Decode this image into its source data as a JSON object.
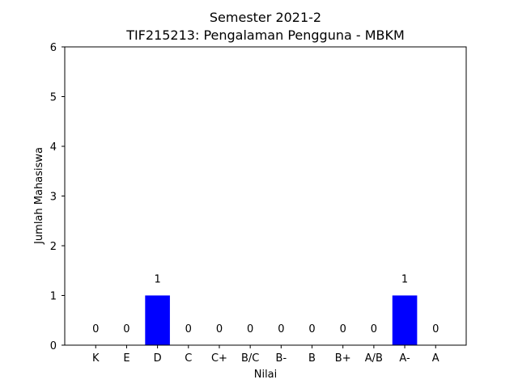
{
  "chart_data": {
    "type": "bar",
    "title": "Semester 2021-2",
    "subtitle": "TIF215213: Pengalaman Pengguna - MBKM",
    "xlabel": "Nilai",
    "ylabel": "Jumlah Mahasiswa",
    "categories": [
      "K",
      "E",
      "D",
      "C",
      "C+",
      "B/C",
      "B-",
      "B",
      "B+",
      "A/B",
      "A-",
      "A"
    ],
    "values": [
      0,
      0,
      1,
      0,
      0,
      0,
      0,
      0,
      0,
      0,
      1,
      0
    ],
    "data_labels": [
      "0",
      "0",
      "1",
      "0",
      "0",
      "0",
      "0",
      "0",
      "0",
      "0",
      "1",
      "0"
    ],
    "ylim": [
      0,
      6
    ],
    "yticks": [
      "0",
      "1",
      "2",
      "3",
      "4",
      "5",
      "6"
    ],
    "bar_color": "#0000ff",
    "grid": false,
    "legend": "none"
  }
}
